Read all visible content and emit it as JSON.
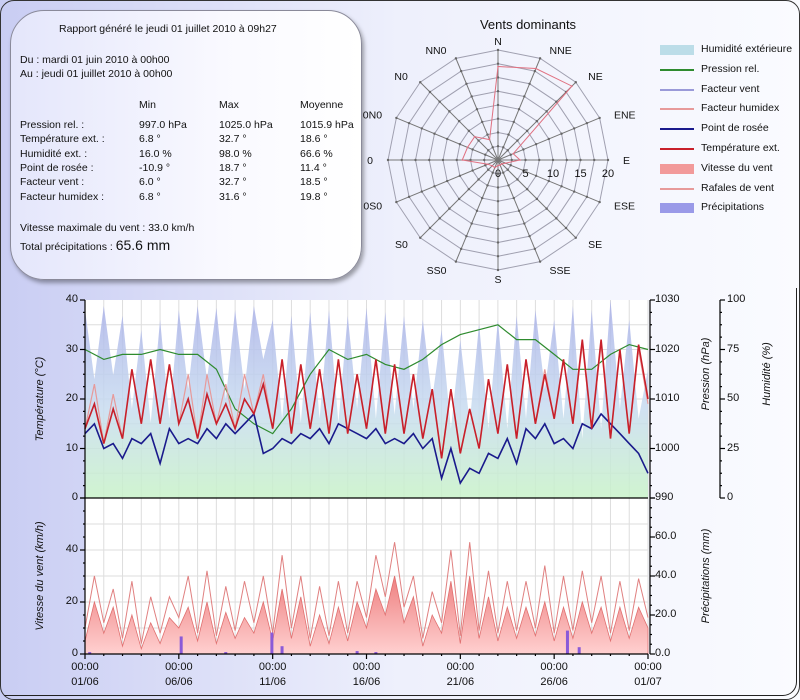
{
  "report": {
    "generated": "Rapport généré le jeudi 01 juillet 2010 à 09h27",
    "from": "Du : mardi 01 juin 2010 à 00h00",
    "to": "Au : jeudi 01 juillet 2010 à 00h00",
    "headers": [
      "Min",
      "Max",
      "Moyenne"
    ],
    "rows": [
      {
        "label": "Pression rel. :",
        "min": "997.0 hPa",
        "max": "1025.0 hPa",
        "avg": "1015.9 hPa"
      },
      {
        "label": "Température ext. :",
        "min": "6.8 °",
        "max": "32.7 °",
        "avg": "18.6 °"
      },
      {
        "label": "Humidité ext. :",
        "min": "16.0 %",
        "max": "98.0 %",
        "avg": "66.6 %"
      },
      {
        "label": "Point de rosée :",
        "min": "-10.9 °",
        "max": "18.7 °",
        "avg": "11.4 °"
      },
      {
        "label": "Facteur vent :",
        "min": "6.0 °",
        "max": "32.7 °",
        "avg": "18.5 °"
      },
      {
        "label": "Facteur humidex :",
        "min": "6.8 °",
        "max": "31.6 °",
        "avg": "19.8 °"
      }
    ],
    "max_wind": "Vitesse maximale du vent : 33.0 km/h",
    "total_precip_label": "Total précipitations : ",
    "total_precip_value": "65.6 mm"
  },
  "legend": [
    {
      "label": "Humidité extérieure",
      "kind": "area",
      "color": "#bcdde8"
    },
    {
      "label": "Pression rel.",
      "kind": "line",
      "color": "#2e8b2e"
    },
    {
      "label": "Facteur vent",
      "kind": "line",
      "color": "#9a9ad8"
    },
    {
      "label": "Facteur humidex",
      "kind": "line",
      "color": "#e79a9a"
    },
    {
      "label": "Point de rosée",
      "kind": "line",
      "color": "#1a1a8c"
    },
    {
      "label": "Température ext.",
      "kind": "line",
      "color": "#c8202a"
    },
    {
      "label": "Vitesse du vent",
      "kind": "area",
      "color": "#f29a9a"
    },
    {
      "label": "Rafales de vent",
      "kind": "line",
      "color": "#e79a9a"
    },
    {
      "label": "Précipitations",
      "kind": "area",
      "color": "#9a9ae8"
    }
  ],
  "chart_data": [
    {
      "type": "radar",
      "title": "Vents dominants",
      "directions": [
        "N",
        "NNE",
        "NE",
        "ENE",
        "E",
        "ESE",
        "SE",
        "SSE",
        "S",
        "SS0",
        "S0",
        "0S0",
        "0",
        "0N0",
        "N0",
        "NN0"
      ],
      "values": [
        17,
        18,
        19,
        3,
        4,
        1.5,
        1,
        1,
        1,
        1.5,
        1.5,
        2,
        6.5,
        6,
        6,
        4
      ],
      "rlim": [
        0,
        20
      ],
      "tick_labels": [
        "0",
        "5",
        "10",
        "15",
        "20"
      ],
      "color": "#e87a86"
    },
    {
      "type": "line",
      "start": "2010-06-01 00:00",
      "interval_hours": 12,
      "ylabel": "Température (°C)",
      "ylim": [
        0,
        40
      ],
      "yticks": [
        "0",
        "10",
        "20",
        "30",
        "40"
      ],
      "ylabel_right": "Pression (hPa)",
      "ylim_right": [
        990,
        1030
      ],
      "yticks_right": [
        "990",
        "1000",
        "1010",
        "1020",
        "1030"
      ],
      "ylabel_right2": "Humidité (%)",
      "ylim_right2": [
        0,
        100
      ],
      "yticks_right2": [
        "0",
        "25",
        "50",
        "75",
        "100"
      ],
      "grid": true,
      "series": [
        {
          "name": "Humidité extérieure",
          "axis": "right2",
          "values": [
            95,
            60,
            97,
            62,
            92,
            45,
            85,
            38,
            90,
            40,
            95,
            55,
            97,
            60,
            96,
            50,
            95,
            55,
            97,
            70,
            90,
            40,
            92,
            38,
            94,
            40,
            95,
            38,
            92,
            45,
            96,
            40,
            94,
            42,
            92,
            45,
            90,
            50,
            85,
            35,
            80,
            38,
            88,
            35,
            90,
            35,
            92,
            40,
            95,
            55,
            90,
            40,
            97,
            30,
            95,
            35,
            100,
            45,
            90,
            40,
            65
          ]
        },
        {
          "name": "Pression rel.",
          "axis": "right",
          "interval_hours": 24,
          "values": [
            1020,
            1018,
            1019,
            1019,
            1020,
            1019,
            1019,
            1016,
            1008,
            1005,
            1003,
            1008,
            1015,
            1020,
            1018,
            1019,
            1017,
            1016,
            1018,
            1021,
            1023,
            1024,
            1025,
            1022,
            1022,
            1019,
            1016,
            1016,
            1019,
            1021,
            1020
          ]
        },
        {
          "name": "Facteur humidex",
          "axis": "left",
          "values": [
            14,
            23,
            11,
            21,
            12,
            26,
            15,
            28,
            15,
            27,
            15,
            25,
            12,
            25,
            15,
            23,
            14,
            25,
            17,
            25,
            14,
            28,
            13,
            27,
            14,
            26,
            13,
            28,
            13,
            25,
            14,
            28,
            13,
            27,
            13,
            25,
            12,
            22,
            8,
            22,
            9,
            18,
            10,
            24,
            13,
            27,
            12,
            28,
            15,
            26,
            16,
            28,
            15,
            31,
            14,
            31,
            12,
            30,
            13,
            30,
            19
          ]
        },
        {
          "name": "Point de rosée",
          "axis": "left",
          "values": [
            13,
            15,
            10,
            11,
            8,
            12,
            11,
            13,
            7,
            14,
            11,
            12,
            11,
            14,
            12,
            15,
            13,
            15,
            17,
            9,
            10,
            12,
            11,
            13,
            12,
            14,
            11,
            15,
            14,
            13,
            12,
            14,
            11,
            12,
            11,
            13,
            10,
            12,
            4,
            10,
            3,
            6,
            5,
            9,
            8,
            12,
            7,
            14,
            12,
            15,
            11,
            12,
            10,
            15,
            14,
            17,
            15,
            13,
            11,
            9,
            5
          ]
        },
        {
          "name": "Température ext.",
          "axis": "left",
          "values": [
            14,
            19,
            11,
            18,
            12,
            26,
            15,
            28,
            15,
            27,
            15,
            20,
            12,
            21,
            15,
            19,
            14,
            20,
            17,
            23,
            14,
            28,
            13,
            27,
            14,
            26,
            13,
            28,
            13,
            25,
            14,
            28,
            13,
            27,
            13,
            25,
            12,
            22,
            8,
            22,
            9,
            18,
            10,
            24,
            13,
            27,
            12,
            28,
            15,
            25,
            16,
            28,
            15,
            32,
            14,
            32,
            12,
            30,
            13,
            31,
            20
          ]
        }
      ]
    },
    {
      "type": "area",
      "start": "2010-06-01 00:00",
      "interval_hours": 12,
      "ylabel": "Vitesse du vent (km/h)",
      "ylim": [
        0,
        60
      ],
      "yticks": [
        "0",
        "20",
        "40"
      ],
      "ylabel_right": "Précipitations (mm)",
      "ylim_right": [
        0,
        80
      ],
      "yticks_right": [
        "0.0",
        "20.0",
        "40.0",
        "60.0"
      ],
      "xticks": [
        {
          "time": "00:00",
          "date": "01/06"
        },
        {
          "time": "00:00",
          "date": "06/06"
        },
        {
          "time": "00:00",
          "date": "11/06"
        },
        {
          "time": "00:00",
          "date": "16/06"
        },
        {
          "time": "00:00",
          "date": "21/06"
        },
        {
          "time": "00:00",
          "date": "26/06"
        },
        {
          "time": "00:00",
          "date": "01/07"
        }
      ],
      "series": [
        {
          "name": "Vitesse du vent",
          "values": [
            5,
            20,
            8,
            18,
            3,
            15,
            2,
            12,
            4,
            14,
            10,
            18,
            5,
            20,
            4,
            16,
            6,
            14,
            8,
            20,
            5,
            25,
            6,
            22,
            3,
            15,
            4,
            18,
            5,
            20,
            10,
            25,
            15,
            30,
            12,
            22,
            3,
            15,
            8,
            28,
            4,
            30,
            6,
            22,
            5,
            18,
            6,
            18,
            7,
            20,
            5,
            18,
            6,
            20,
            8,
            18,
            5,
            18,
            6,
            18,
            10
          ]
        },
        {
          "name": "Rafales de vent",
          "values": [
            10,
            30,
            12,
            25,
            6,
            28,
            4,
            22,
            8,
            22,
            14,
            30,
            8,
            32,
            7,
            26,
            9,
            28,
            12,
            30,
            8,
            38,
            10,
            30,
            6,
            26,
            7,
            28,
            8,
            28,
            14,
            38,
            22,
            43,
            18,
            30,
            6,
            24,
            12,
            40,
            7,
            43,
            9,
            32,
            8,
            28,
            9,
            28,
            10,
            34,
            8,
            30,
            9,
            32,
            12,
            30,
            8,
            28,
            9,
            29,
            14
          ]
        },
        {
          "name": "Précipitations",
          "axis": "right",
          "events": [
            [
              "2010-06-01 06:00",
              1
            ],
            [
              "2010-06-06 03:00",
              9
            ],
            [
              "2010-06-08 12:00",
              1
            ],
            [
              "2010-06-10 23:00",
              11
            ],
            [
              "2010-06-11 12:00",
              4
            ],
            [
              "2010-06-15 12:00",
              1.5
            ],
            [
              "2010-06-16 12:00",
              1
            ],
            [
              "2010-06-26 17:00",
              12
            ],
            [
              "2010-06-27 08:00",
              3.5
            ]
          ]
        }
      ]
    }
  ]
}
